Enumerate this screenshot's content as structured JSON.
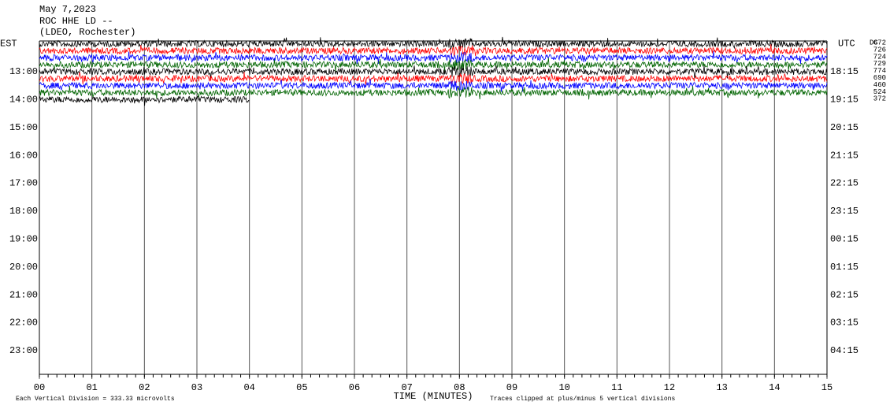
{
  "chart_data": {
    "type": "helicorder",
    "title": [
      "May 7,2023",
      "ROC HHE LD --",
      "(LDEO, Rochester)"
    ],
    "left_label": "EST",
    "right_label": "UTC",
    "dc_label": "DC",
    "xlabel": "TIME (MINUTES)",
    "footnote_left": "Each Vertical Division =  333.33 microvolts",
    "footnote_right": "Traces clipped at plus/minus 5 vertical divisions",
    "xlim": [
      0,
      15
    ],
    "xticks": [
      {
        "value": 0,
        "label": "00"
      },
      {
        "value": 1,
        "label": "01"
      },
      {
        "value": 2,
        "label": "02"
      },
      {
        "value": 3,
        "label": "03"
      },
      {
        "value": 4,
        "label": "04"
      },
      {
        "value": 5,
        "label": "05"
      },
      {
        "value": 6,
        "label": "06"
      },
      {
        "value": 7,
        "label": "07"
      },
      {
        "value": 8,
        "label": "08"
      },
      {
        "value": 9,
        "label": "09"
      },
      10,
      11,
      12,
      13,
      14,
      15
    ],
    "ylim": [
      11.9,
      23.85
    ],
    "yticks": [
      {
        "value": 13,
        "label": "13:00"
      },
      {
        "value": 14,
        "label": "14:00"
      },
      {
        "value": 15,
        "label": "15:00"
      },
      {
        "value": 16,
        "label": "16:00"
      },
      {
        "value": 17,
        "label": "17:00"
      },
      {
        "value": 18,
        "label": "18:00"
      },
      {
        "value": 19,
        "label": "19:00"
      },
      {
        "value": 20,
        "label": "20:00"
      },
      {
        "value": 21,
        "label": "21:00"
      },
      {
        "value": 22,
        "label": "22:00"
      },
      {
        "value": 23,
        "label": "23:00"
      }
    ],
    "y2ticks": [
      {
        "value": 13,
        "label": "18:15"
      },
      {
        "value": 14,
        "label": "19:15"
      },
      {
        "value": 15,
        "label": "20:15"
      },
      {
        "value": 16,
        "label": "21:15"
      },
      {
        "value": 17,
        "label": "22:15"
      },
      {
        "value": 18,
        "label": "23:15"
      },
      {
        "value": 19,
        "label": "00:15"
      },
      {
        "value": 20,
        "label": "01:15"
      },
      {
        "value": 21,
        "label": "02:15"
      },
      {
        "value": 22,
        "label": "03:15"
      },
      {
        "value": 23,
        "label": "04:15"
      }
    ],
    "traces": [
      {
        "row": 12,
        "end": 15,
        "color": "#000000",
        "dc": "672"
      },
      {
        "row": 12.25,
        "end": 15,
        "color": "#ff0000",
        "dc": "726"
      },
      {
        "row": 12.5,
        "end": 15,
        "color": "#0000ff",
        "dc": "724"
      },
      {
        "row": 12.75,
        "end": 15,
        "color": "#006400",
        "dc": "729"
      },
      {
        "row": 13,
        "end": 15,
        "color": "#000000",
        "dc": "774"
      },
      {
        "row": 13.25,
        "end": 15,
        "color": "#ff0000",
        "dc": "690"
      },
      {
        "row": 13.5,
        "end": 15,
        "color": "#0000ff",
        "dc": "460"
      },
      {
        "row": 13.75,
        "end": 15,
        "color": "#006400",
        "dc": "524"
      },
      {
        "row": 14,
        "end": 4,
        "color": "#000000",
        "dc": "372"
      }
    ]
  }
}
